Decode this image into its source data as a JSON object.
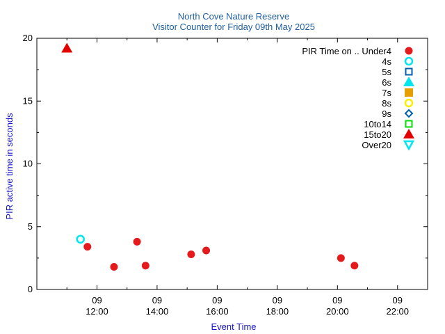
{
  "chart_data": {
    "type": "scatter",
    "title": "North Cove Nature Reserve",
    "subtitle": "Visitor Counter for Friday 09th May 2025",
    "xlabel": "Event Time",
    "ylabel": "PIR active time in seconds",
    "xlim": [
      "10:00",
      "23:00"
    ],
    "ylim": [
      0,
      20
    ],
    "x_ticks": [
      {
        "day": "09",
        "time": "12:00"
      },
      {
        "day": "09",
        "time": "14:00"
      },
      {
        "day": "09",
        "time": "16:00"
      },
      {
        "day": "09",
        "time": "18:00"
      },
      {
        "day": "09",
        "time": "20:00"
      },
      {
        "day": "09",
        "time": "22:00"
      }
    ],
    "y_ticks": [
      0,
      5,
      10,
      15,
      20
    ],
    "legend_title": "PIR Time on ..",
    "legend_position": "top-right",
    "grid": false,
    "series": [
      {
        "name": "Under4",
        "marker": "circle-filled",
        "color": "#e41a1c",
        "points": [
          [
            "11:41",
            3.4
          ],
          [
            "12:34",
            1.8
          ],
          [
            "13:20",
            3.8
          ],
          [
            "13:37",
            1.9
          ],
          [
            "15:08",
            2.8
          ],
          [
            "15:38",
            3.1
          ],
          [
            "20:07",
            2.5
          ],
          [
            "20:34",
            1.9
          ]
        ]
      },
      {
        "name": "4s",
        "marker": "circle-open",
        "color": "#00e5ee",
        "points": [
          [
            "11:27",
            4.0
          ]
        ]
      },
      {
        "name": "5s",
        "marker": "square-open",
        "color": "#0060ad",
        "points": []
      },
      {
        "name": "6s",
        "marker": "triangle-filled",
        "color": "#00e5ee",
        "points": []
      },
      {
        "name": "7s",
        "marker": "square-filled",
        "color": "#e69f00",
        "points": []
      },
      {
        "name": "8s",
        "marker": "circle-open",
        "color": "#ffee00",
        "points": []
      },
      {
        "name": "9s",
        "marker": "diamond-open",
        "color": "#0060ad",
        "points": []
      },
      {
        "name": "10to14",
        "marker": "square-open",
        "color": "#00dd00",
        "points": []
      },
      {
        "name": "15to20",
        "marker": "triangle-filled",
        "color": "#e50000",
        "points": [
          [
            "11:00",
            19.2
          ]
        ]
      },
      {
        "name": "Over20",
        "marker": "triangle-down-open",
        "color": "#00e5ee",
        "points": []
      }
    ]
  }
}
